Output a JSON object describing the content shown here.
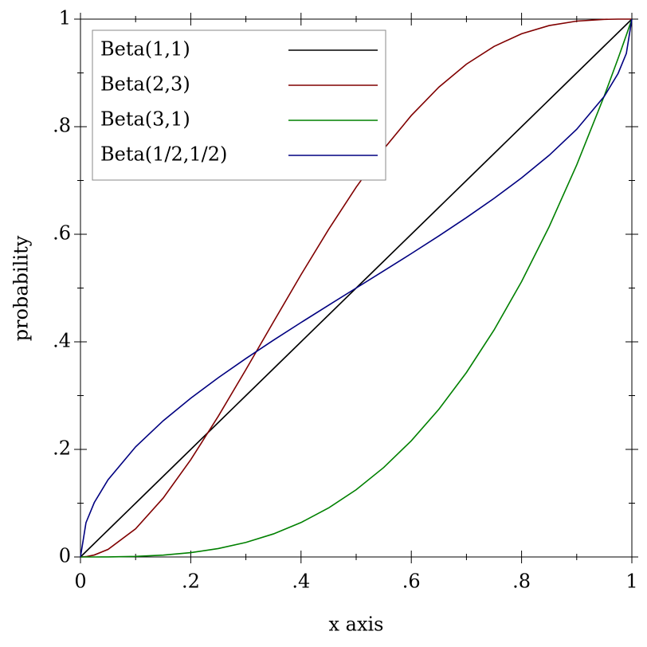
{
  "chart_data": {
    "type": "line",
    "x_label": "x axis",
    "y_label": "probability",
    "x": [
      0,
      0.01,
      0.025,
      0.05,
      0.1,
      0.15,
      0.2,
      0.25,
      0.3,
      0.35,
      0.4,
      0.45,
      0.5,
      0.55,
      0.6,
      0.65,
      0.7,
      0.75,
      0.8,
      0.85,
      0.9,
      0.95,
      0.975,
      0.99,
      1
    ],
    "series": [
      {
        "name": "Beta(1,1)",
        "color": "#000000",
        "values": [
          0,
          0.01,
          0.025,
          0.05,
          0.1,
          0.15,
          0.2,
          0.25,
          0.3,
          0.35,
          0.4,
          0.45,
          0.5,
          0.55,
          0.6,
          0.65,
          0.7,
          0.75,
          0.8,
          0.85,
          0.9,
          0.95,
          0.975,
          0.99,
          1
        ]
      },
      {
        "name": "Beta(2,3)",
        "color": "#800000",
        "values": [
          0,
          0.000592,
          0.003626,
          0.014019,
          0.0523,
          0.10952,
          0.1808,
          0.26172,
          0.3483,
          0.43702,
          0.5248,
          0.60902,
          0.6875,
          0.75852,
          0.8208,
          0.87352,
          0.9163,
          0.94922,
          0.9728,
          0.98802,
          0.9963,
          0.99952,
          0.99998,
          1,
          1
        ]
      },
      {
        "name": "Beta(3,1)",
        "color": "#008000",
        "values": [
          0,
          1e-06,
          1.56e-05,
          0.000125,
          0.001,
          0.003375,
          0.008,
          0.015625,
          0.027,
          0.042875,
          0.064,
          0.091125,
          0.125,
          0.166375,
          0.216,
          0.274625,
          0.343,
          0.421875,
          0.512,
          0.614125,
          0.729,
          0.857375,
          0.926859,
          0.970299,
          1
        ]
      },
      {
        "name": "Beta(1/2,1/2)",
        "color": "#000080",
        "values": [
          0,
          0.06377,
          0.10108,
          0.14357,
          0.20483,
          0.25318,
          0.29517,
          0.33333,
          0.36901,
          0.40301,
          0.43591,
          0.46812,
          0.5,
          0.53188,
          0.56409,
          0.59699,
          0.63099,
          0.66667,
          0.70483,
          0.74682,
          0.79517,
          0.85643,
          0.89892,
          0.93623,
          1
        ]
      }
    ],
    "xlim": [
      0,
      1
    ],
    "ylim": [
      0,
      1
    ],
    "xticks": [
      0,
      {
        "value": 0.2,
        "label": ".2"
      },
      {
        "value": 0.4,
        "label": ".4"
      },
      {
        "value": 0.6,
        "label": ".6"
      },
      {
        "value": 0.8,
        "label": ".8"
      },
      1
    ],
    "yticks": [
      0,
      {
        "value": 0.2,
        "label": ".2"
      },
      {
        "value": 0.4,
        "label": ".4"
      },
      {
        "value": 0.6,
        "label": ".6"
      },
      {
        "value": 0.8,
        "label": ".8"
      },
      1
    ],
    "legend": "top-left"
  }
}
